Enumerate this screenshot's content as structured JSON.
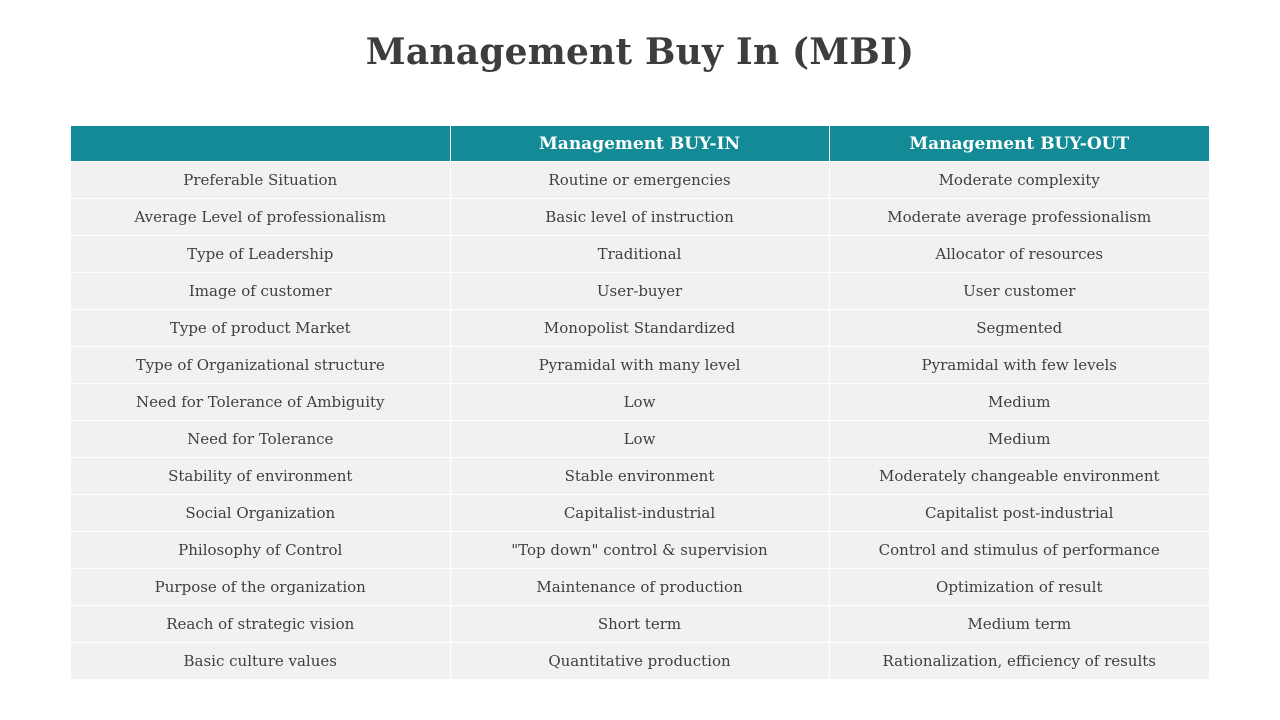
{
  "title": "Management Buy In (MBI)",
  "table": {
    "headers": [
      "",
      "Management BUY-IN",
      "Management BUY-OUT"
    ],
    "rows": [
      [
        "Preferable Situation",
        "Routine or emergencies",
        "Moderate complexity"
      ],
      [
        "Average Level of professionalism",
        "Basic level of instruction",
        "Moderate average professionalism"
      ],
      [
        "Type of Leadership",
        "Traditional",
        "Allocator of resources"
      ],
      [
        "Image of customer",
        "User-buyer",
        "User customer"
      ],
      [
        "Type of product Market",
        "Monopolist Standardized",
        "Segmented"
      ],
      [
        "Type of Organizational structure",
        "Pyramidal with many level",
        "Pyramidal with few levels"
      ],
      [
        "Need for Tolerance of Ambiguity",
        "Low",
        "Medium"
      ],
      [
        "Need for Tolerance",
        "Low",
        "Medium"
      ],
      [
        "Stability  of environment",
        "Stable environment",
        "Moderately changeable environment"
      ],
      [
        "Social Organization",
        "Capitalist-industrial",
        "Capitalist post-industrial"
      ],
      [
        "Philosophy of Control",
        "\"Top down\" control & supervision",
        "Control and stimulus of performance"
      ],
      [
        "Purpose of the organization",
        "Maintenance of production",
        "Optimization  of result"
      ],
      [
        "Reach of strategic vision",
        "Short term",
        "Medium term"
      ],
      [
        "Basic culture values",
        "Quantitative production",
        "Rationalization,  efficiency of results"
      ]
    ]
  },
  "colors": {
    "header_bg": "#138b96",
    "row_bg": "#f1f1f1",
    "title_text": "#3d3d3d"
  }
}
